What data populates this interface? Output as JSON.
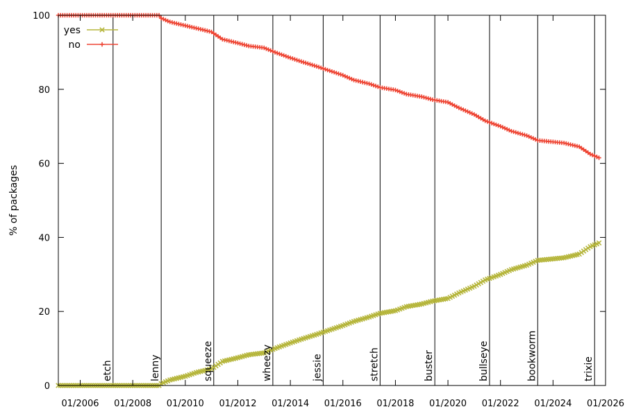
{
  "chart_data": {
    "type": "line",
    "ylabel": "% of packages",
    "xlim": [
      "2005-03",
      "2026-01"
    ],
    "ylim": [
      0,
      100
    ],
    "grid": false,
    "legend_position": "top-left",
    "x_ticks": [
      "2006-01",
      "2008-01",
      "2010-01",
      "2012-01",
      "2014-01",
      "2016-01",
      "2018-01",
      "2020-01",
      "2022-01",
      "2024-01",
      "2026-01"
    ],
    "x_tick_labels": [
      "01/2006",
      "01/2008",
      "01/2010",
      "01/2012",
      "01/2014",
      "01/2016",
      "01/2018",
      "01/2020",
      "01/2022",
      "01/2024",
      "01/2026"
    ],
    "y_ticks": [
      0,
      20,
      40,
      60,
      80,
      100
    ],
    "y_tick_labels": [
      "0",
      "20",
      "40",
      "60",
      "80",
      "100"
    ],
    "releases": [
      {
        "name": "etch",
        "date": "2007-04"
      },
      {
        "name": "lenny",
        "date": "2009-02"
      },
      {
        "name": "squeeze",
        "date": "2011-02"
      },
      {
        "name": "wheezy",
        "date": "2013-05"
      },
      {
        "name": "jessie",
        "date": "2015-04"
      },
      {
        "name": "stretch",
        "date": "2017-06"
      },
      {
        "name": "buster",
        "date": "2019-07"
      },
      {
        "name": "bullseye",
        "date": "2021-08"
      },
      {
        "name": "bookworm",
        "date": "2023-06"
      },
      {
        "name": "trixie",
        "date": "2025-08"
      }
    ],
    "series": [
      {
        "name": "yes",
        "color": "#b5b53a",
        "marker": "x",
        "x": [
          "2005-03",
          "2007-01",
          "2009-01",
          "2009-02",
          "2009-06",
          "2010-01",
          "2010-06",
          "2011-01",
          "2011-06",
          "2012-01",
          "2012-06",
          "2013-01",
          "2013-06",
          "2014-01",
          "2014-06",
          "2015-01",
          "2015-06",
          "2016-01",
          "2016-06",
          "2017-01",
          "2017-06",
          "2018-01",
          "2018-06",
          "2019-01",
          "2019-06",
          "2020-01",
          "2020-06",
          "2021-01",
          "2021-06",
          "2022-01",
          "2022-06",
          "2023-01",
          "2023-06",
          "2024-01",
          "2024-06",
          "2025-01",
          "2025-06",
          "2025-10"
        ],
        "y": [
          0,
          0,
          0,
          0.5,
          1.5,
          2.5,
          3.5,
          4.5,
          6.5,
          7.5,
          8.3,
          8.8,
          10.0,
          11.5,
          12.5,
          13.8,
          14.8,
          16.2,
          17.3,
          18.5,
          19.5,
          20.2,
          21.3,
          22.0,
          22.8,
          23.5,
          25.0,
          26.8,
          28.5,
          30.0,
          31.3,
          32.5,
          33.8,
          34.2,
          34.5,
          35.5,
          37.5,
          38.5
        ]
      },
      {
        "name": "no",
        "color": "#ee4433",
        "marker": "+",
        "x": [
          "2005-03",
          "2007-01",
          "2009-01",
          "2009-02",
          "2009-06",
          "2010-01",
          "2010-06",
          "2011-01",
          "2011-06",
          "2012-01",
          "2012-06",
          "2013-01",
          "2013-06",
          "2014-01",
          "2014-06",
          "2015-01",
          "2015-06",
          "2016-01",
          "2016-06",
          "2017-01",
          "2017-06",
          "2018-01",
          "2018-06",
          "2019-01",
          "2019-06",
          "2020-01",
          "2020-06",
          "2021-01",
          "2021-06",
          "2022-01",
          "2022-06",
          "2023-01",
          "2023-06",
          "2024-01",
          "2024-06",
          "2025-01",
          "2025-06",
          "2025-10"
        ],
        "y": [
          100,
          100,
          100,
          99.2,
          98.2,
          97.2,
          96.5,
          95.5,
          93.5,
          92.5,
          91.7,
          91.2,
          90.0,
          88.5,
          87.5,
          86.2,
          85.2,
          83.8,
          82.5,
          81.5,
          80.5,
          79.8,
          78.7,
          78.0,
          77.2,
          76.5,
          75.0,
          73.2,
          71.5,
          70.0,
          68.7,
          67.5,
          66.2,
          65.8,
          65.5,
          64.5,
          62.5,
          61.5
        ]
      }
    ]
  }
}
